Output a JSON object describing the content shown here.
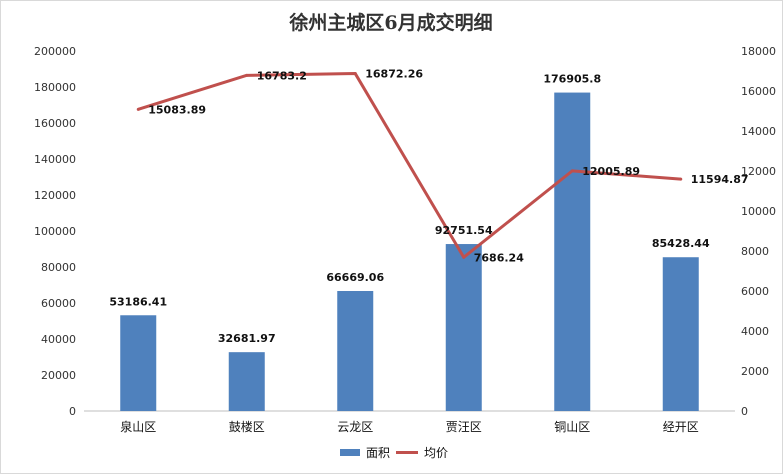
{
  "chart_data": {
    "type": "bar+line",
    "title": "徐州主城区6月成交明细",
    "categories": [
      "泉山区",
      "鼓楼区",
      "云龙区",
      "贾汪区",
      "铜山区",
      "经开区"
    ],
    "series": [
      {
        "name": "面积",
        "type": "bar",
        "axis": "left",
        "color": "#4F81BD",
        "values": [
          53186.41,
          32681.97,
          66669.06,
          92751.54,
          176905.8,
          85428.44
        ],
        "labels": [
          "53186.41",
          "32681.97",
          "66669.06",
          "92751.54",
          "176905.8",
          "85428.44"
        ]
      },
      {
        "name": "均价",
        "type": "line",
        "axis": "right",
        "color": "#C0504D",
        "values": [
          15083.89,
          16783.2,
          16872.26,
          7686.24,
          12005.89,
          11594.87
        ],
        "labels": [
          "15083.89",
          "16783.2",
          "16872.26",
          "7686.24",
          "12005.89",
          "11594.87"
        ]
      }
    ],
    "y_left": {
      "min": 0,
      "max": 200000,
      "ticks": [
        "0",
        "20000",
        "40000",
        "60000",
        "80000",
        "100000",
        "120000",
        "140000",
        "160000",
        "180000",
        "200000"
      ]
    },
    "y_right": {
      "min": 0,
      "max": 18000,
      "ticks": [
        "0",
        "2000",
        "4000",
        "6000",
        "8000",
        "10000",
        "12000",
        "14000",
        "16000",
        "18000"
      ]
    },
    "grid": false,
    "legend": "bottom-center"
  }
}
